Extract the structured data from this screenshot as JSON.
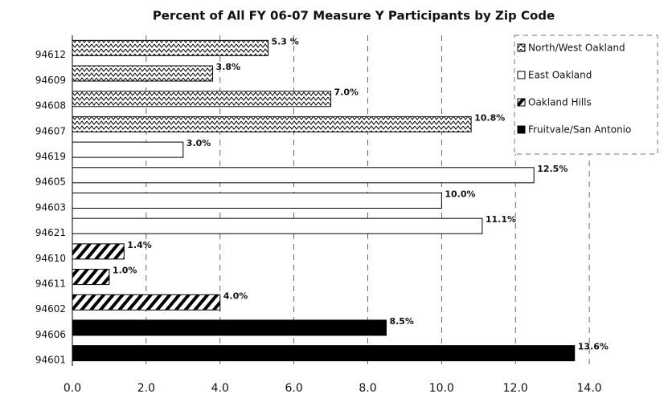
{
  "chart_data": {
    "type": "barh",
    "title": "Percent of All FY 06-07 Measure Y Participants by Zip Code",
    "categories": [
      "94612",
      "94609",
      "94608",
      "94607",
      "94619",
      "94605",
      "94603",
      "94621",
      "94610",
      "94611",
      "94602",
      "94606",
      "94601"
    ],
    "series": [
      {
        "name": "North/West Oakland",
        "color": "#000000",
        "pattern": "zigzag",
        "values": [
          5.3,
          3.8,
          7.0,
          10.8,
          null,
          null,
          null,
          null,
          null,
          null,
          null,
          null,
          null
        ],
        "value_labels": [
          "5.3 %",
          "3.8%",
          "7.0%",
          "10.8%",
          null,
          null,
          null,
          null,
          null,
          null,
          null,
          null,
          null
        ]
      },
      {
        "name": "East Oakland",
        "color": "#ffffff",
        "pattern": "none",
        "values": [
          null,
          null,
          null,
          null,
          3.0,
          12.5,
          10.0,
          11.1,
          null,
          null,
          null,
          null,
          null
        ],
        "value_labels": [
          null,
          null,
          null,
          null,
          "3.0%",
          "12.5%",
          "10.0%",
          "11.1%",
          null,
          null,
          null,
          null,
          null
        ]
      },
      {
        "name": "Oakland Hills",
        "color": "#000000",
        "pattern": "hatch",
        "values": [
          null,
          null,
          null,
          null,
          null,
          null,
          null,
          null,
          1.4,
          1.0,
          4.0,
          null,
          null
        ],
        "value_labels": [
          null,
          null,
          null,
          null,
          null,
          null,
          null,
          null,
          "1.4%",
          "1.0%",
          "4.0%",
          null,
          null
        ]
      },
      {
        "name": "Fruitvale/San Antonio",
        "color": "#000000",
        "pattern": "solid",
        "values": [
          null,
          null,
          null,
          null,
          null,
          null,
          null,
          null,
          null,
          null,
          null,
          8.5,
          13.6
        ],
        "value_labels": [
          null,
          null,
          null,
          null,
          null,
          null,
          null,
          null,
          null,
          null,
          null,
          "8.5%",
          "13.6%"
        ]
      }
    ],
    "xlim": [
      0,
      15.5
    ],
    "xticks": [
      {
        "value": 0,
        "label": "0.0"
      },
      {
        "value": 2,
        "label": "2.0"
      },
      {
        "value": 4,
        "label": "4.0"
      },
      {
        "value": 6,
        "label": "6.0"
      },
      {
        "value": 8,
        "label": "8.0"
      },
      {
        "value": 10,
        "label": "10.0"
      },
      {
        "value": 12,
        "label": "12.0"
      },
      {
        "value": 14,
        "label": "14.0"
      }
    ],
    "grid": true,
    "legend": "top-right"
  }
}
